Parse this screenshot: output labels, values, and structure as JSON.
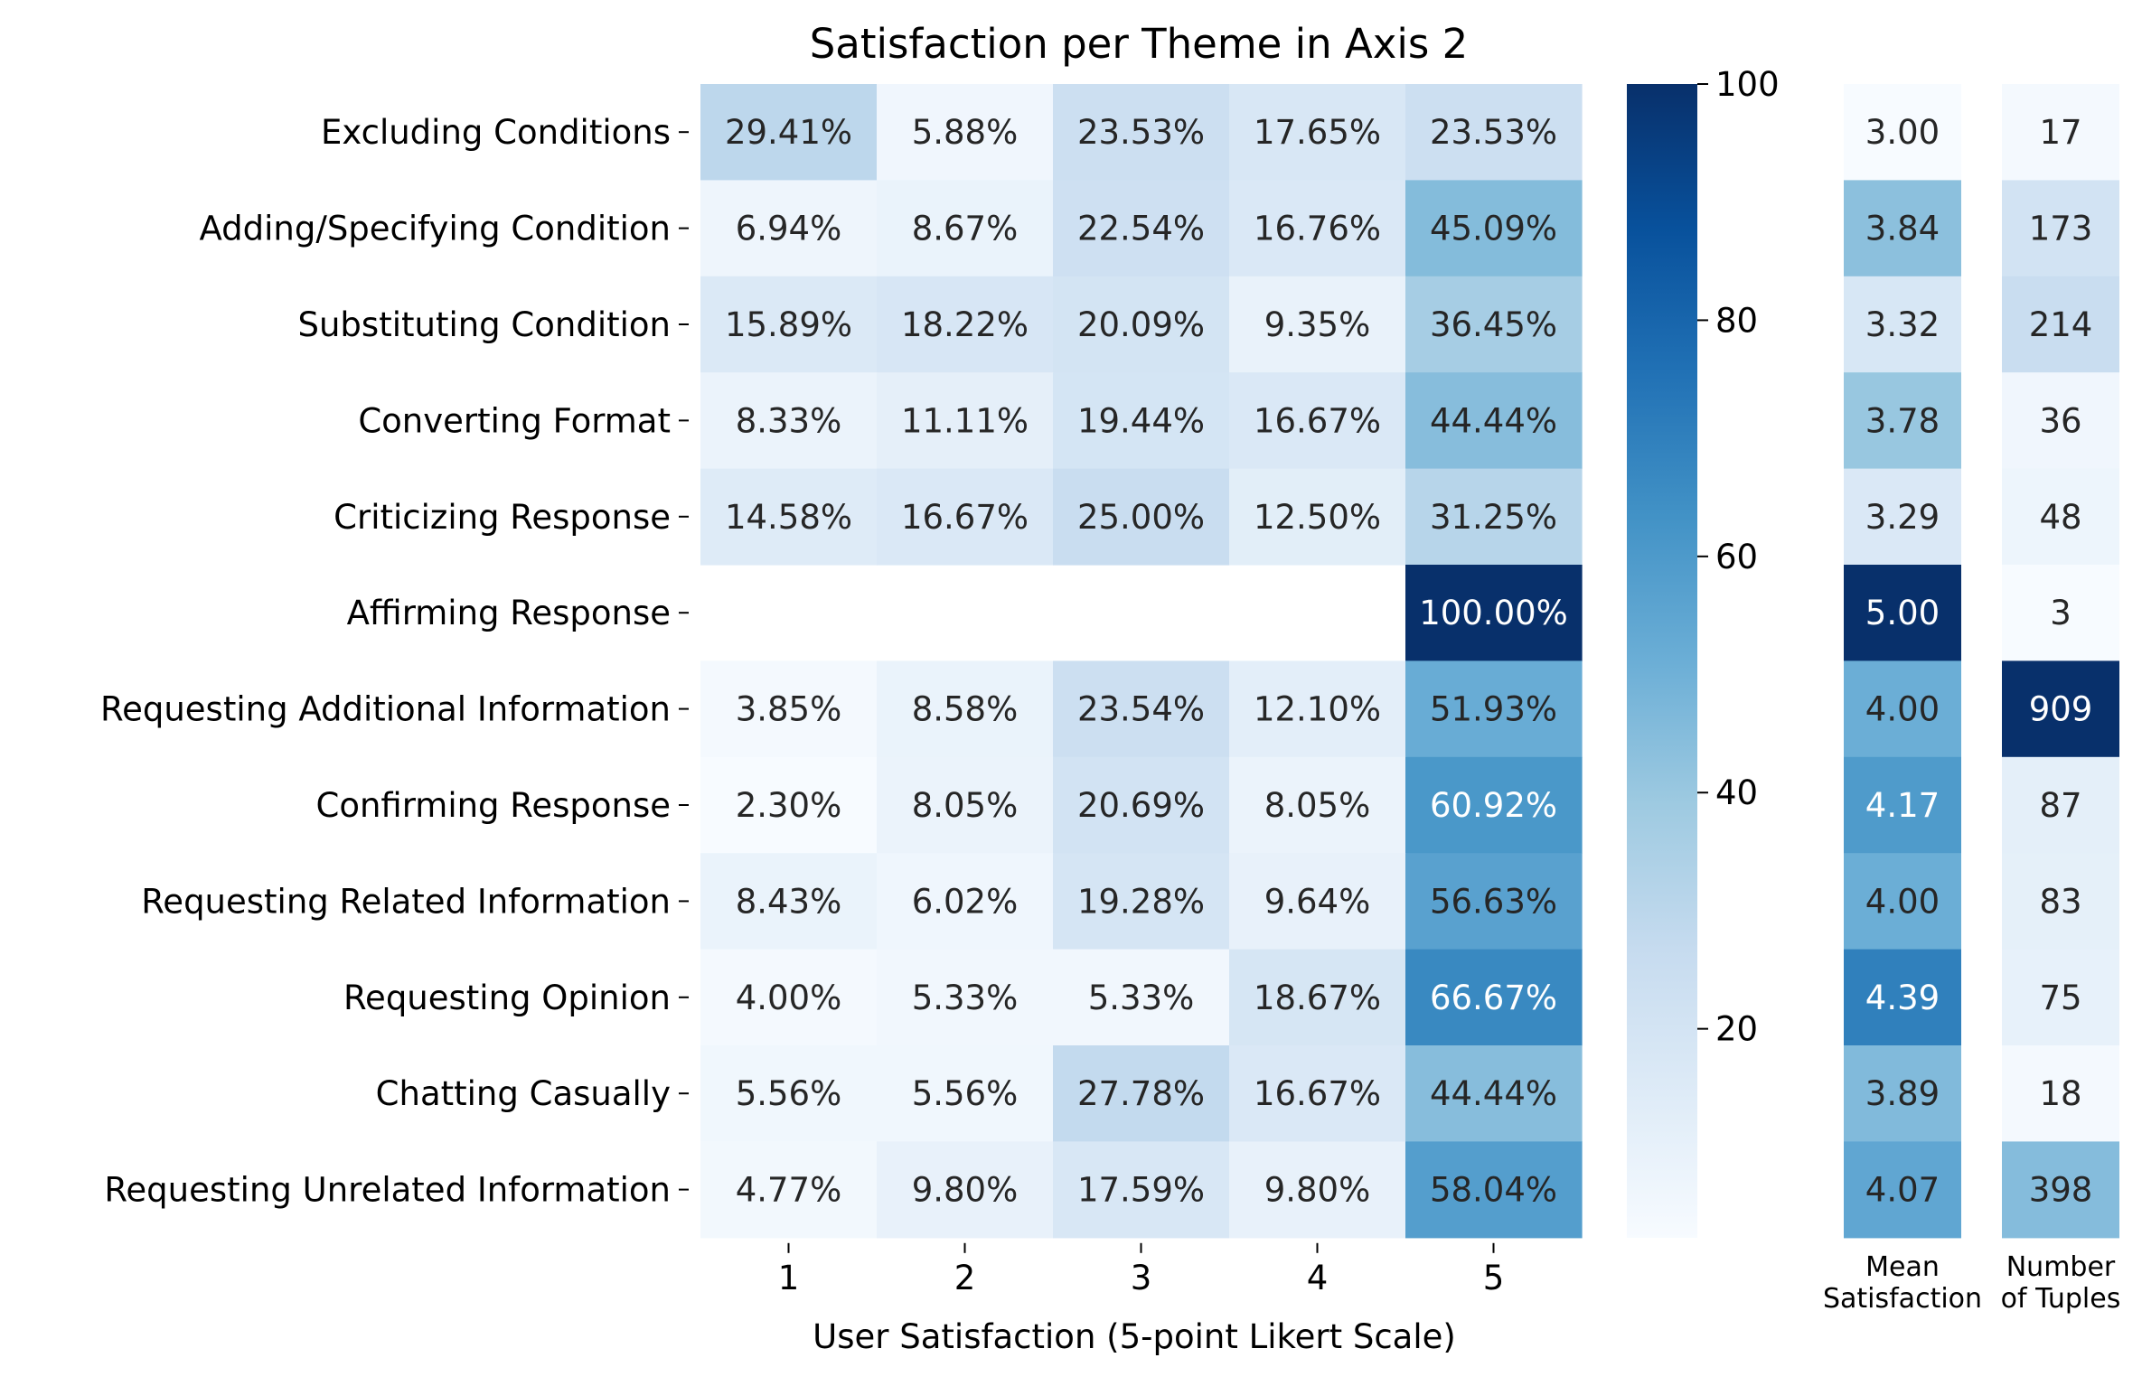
{
  "chart_data": [
    {
      "type": "heatmap",
      "title": "Satisfaction per Theme in Axis 2",
      "xlabel": "User Satisfaction (5-point Likert Scale)",
      "ylabel": "",
      "x": [
        "1",
        "2",
        "3",
        "4",
        "5"
      ],
      "y": [
        "Excluding Conditions",
        "Adding/Specifying Condition",
        "Substituting Condition",
        "Converting Format",
        "Criticizing Response",
        "Affirming Response",
        "Requesting Additional Information",
        "Confirming Response",
        "Requesting Related Information",
        "Requesting Opinion",
        "Chatting Casually",
        "Requesting Unrelated Information"
      ],
      "values": [
        [
          29.41,
          5.88,
          23.53,
          17.65,
          23.53
        ],
        [
          6.94,
          8.67,
          22.54,
          16.76,
          45.09
        ],
        [
          15.89,
          18.22,
          20.09,
          9.35,
          36.45
        ],
        [
          8.33,
          11.11,
          19.44,
          16.67,
          44.44
        ],
        [
          14.58,
          16.67,
          25.0,
          12.5,
          31.25
        ],
        [
          null,
          null,
          null,
          null,
          100.0
        ],
        [
          3.85,
          8.58,
          23.54,
          12.1,
          51.93
        ],
        [
          2.3,
          8.05,
          20.69,
          8.05,
          60.92
        ],
        [
          8.43,
          6.02,
          19.28,
          9.64,
          56.63
        ],
        [
          4.0,
          5.33,
          5.33,
          18.67,
          66.67
        ],
        [
          5.56,
          5.56,
          27.78,
          16.67,
          44.44
        ],
        [
          4.77,
          9.8,
          17.59,
          9.8,
          58.04
        ]
      ],
      "cell_labels": [
        [
          "29.41%",
          "5.88%",
          "23.53%",
          "17.65%",
          "23.53%"
        ],
        [
          "6.94%",
          "8.67%",
          "22.54%",
          "16.76%",
          "45.09%"
        ],
        [
          "15.89%",
          "18.22%",
          "20.09%",
          "9.35%",
          "36.45%"
        ],
        [
          "8.33%",
          "11.11%",
          "19.44%",
          "16.67%",
          "44.44%"
        ],
        [
          "14.58%",
          "16.67%",
          "25.00%",
          "12.50%",
          "31.25%"
        ],
        [
          "",
          "",
          "",
          "",
          "100.00%"
        ],
        [
          "3.85%",
          "8.58%",
          "23.54%",
          "12.10%",
          "51.93%"
        ],
        [
          "2.30%",
          "8.05%",
          "20.69%",
          "8.05%",
          "60.92%"
        ],
        [
          "8.43%",
          "6.02%",
          "19.28%",
          "9.64%",
          "56.63%"
        ],
        [
          "4.00%",
          "5.33%",
          "5.33%",
          "18.67%",
          "66.67%"
        ],
        [
          "5.56%",
          "5.56%",
          "27.78%",
          "16.67%",
          "44.44%"
        ],
        [
          "4.77%",
          "9.80%",
          "17.59%",
          "9.80%",
          "58.04%"
        ]
      ],
      "colormap": "Blues",
      "colorbar": {
        "ticks": [
          20,
          40,
          60,
          80,
          100
        ],
        "range": [
          2.3,
          100
        ]
      }
    },
    {
      "type": "heatmap",
      "xlabel": "Mean\nSatisfaction",
      "values": [
        3.0,
        3.84,
        3.32,
        3.78,
        3.29,
        5.0,
        4.0,
        4.17,
        4.0,
        4.39,
        3.89,
        4.07
      ],
      "labels": [
        "3.00",
        "3.84",
        "3.32",
        "3.78",
        "3.29",
        "5.00",
        "4.00",
        "4.17",
        "4.00",
        "4.39",
        "3.89",
        "4.07"
      ],
      "range": [
        3.0,
        5.0
      ],
      "colormap": "Blues"
    },
    {
      "type": "heatmap",
      "xlabel": "Number\nof Tuples",
      "values": [
        17,
        173,
        214,
        36,
        48,
        3,
        909,
        87,
        83,
        75,
        18,
        398
      ],
      "labels": [
        "17",
        "173",
        "214",
        "36",
        "48",
        "3",
        "909",
        "87",
        "83",
        "75",
        "18",
        "398"
      ],
      "range": [
        3,
        909
      ],
      "colormap": "Blues"
    }
  ]
}
